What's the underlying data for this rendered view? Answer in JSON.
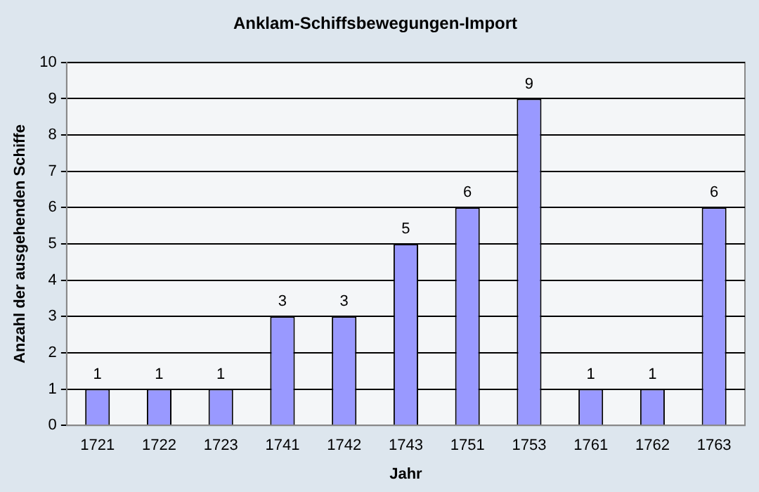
{
  "chart_data": {
    "type": "bar",
    "title": "Anklam-Schiffsbewegungen-Import",
    "xlabel": "Jahr",
    "ylabel": "Anzahl der ausgehenden Schiffe",
    "categories": [
      "1721",
      "1722",
      "1723",
      "1741",
      "1742",
      "1743",
      "1751",
      "1753",
      "1761",
      "1762",
      "1763"
    ],
    "values": [
      1,
      1,
      1,
      3,
      3,
      5,
      6,
      9,
      1,
      1,
      6
    ],
    "color": "#9999ff",
    "ylim": [
      0,
      10
    ],
    "yticks": [
      0,
      1,
      2,
      3,
      4,
      5,
      6,
      7,
      8,
      9,
      10
    ],
    "grid": "y",
    "legend": false,
    "data_labels": true
  }
}
